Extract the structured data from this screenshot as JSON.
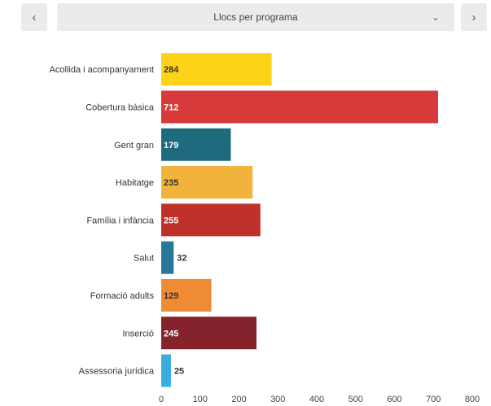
{
  "header": {
    "prev_icon": "chevron-left-icon",
    "next_icon": "chevron-right-icon",
    "selector_label": "Llocs per programa",
    "selector_icon": "chevron-down-icon"
  },
  "chart_data": {
    "type": "bar",
    "orientation": "horizontal",
    "title": "",
    "xlabel": "",
    "ylabel": "",
    "xlim": [
      0,
      800
    ],
    "xticks": [
      0,
      100,
      200,
      300,
      400,
      500,
      600,
      700,
      800
    ],
    "grid": false,
    "categories": [
      "Acollida i acompanyament",
      "Cobertura bàsica",
      "Gent gran",
      "Habitatge",
      "Família i infància",
      "Salut",
      "Formació adults",
      "Inserció",
      "Assessoria jurídica"
    ],
    "values": [
      284,
      712,
      179,
      235,
      255,
      32,
      129,
      245,
      25
    ],
    "colors": [
      "#ffd21a",
      "#d73a3a",
      "#1f6b7e",
      "#f1b33c",
      "#c0302b",
      "#2a7898",
      "#f08b35",
      "#84232c",
      "#3bace0"
    ],
    "label_colors": [
      "#333333",
      "#ffffff",
      "#ffffff",
      "#333333",
      "#ffffff",
      "#333333",
      "#333333",
      "#ffffff",
      "#333333"
    ]
  }
}
